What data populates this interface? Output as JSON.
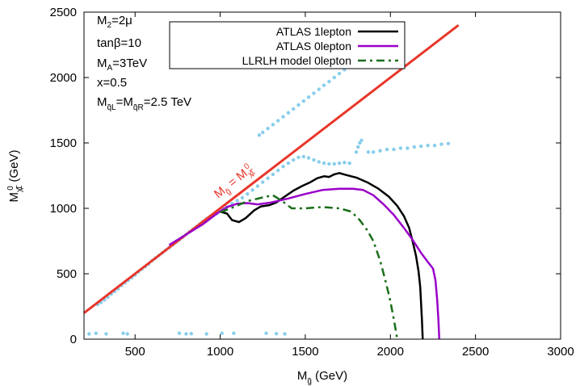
{
  "chart_data": {
    "type": "line",
    "title": "",
    "xlabel": {
      "main": "M",
      "sub": "g̃",
      "unit": " (GeV)"
    },
    "ylabel": {
      "main": "M",
      "sub": "χ̃",
      "sup": "0",
      "sub2": "1",
      "unit": " (GeV)"
    },
    "xlim": [
      200,
      3000
    ],
    "ylim": [
      0,
      2500
    ],
    "xticks": [
      500,
      1000,
      1500,
      2000,
      2500,
      3000
    ],
    "yticks": [
      0,
      500,
      1000,
      1500,
      2000,
      2500
    ],
    "grid": false,
    "legend_position": "top-center",
    "parameters": [
      {
        "main": "M",
        "sub": "2",
        "rest": "=2μ"
      },
      {
        "main": "tanβ=10",
        "sub": "",
        "rest": ""
      },
      {
        "main": "M",
        "sub": "A",
        "rest": "=3TeV"
      },
      {
        "main": "x=0.5",
        "sub": "",
        "rest": ""
      },
      {
        "main": "M",
        "sub": "q̃L",
        "mid": "=M",
        "sub2": "q̃R",
        "rest": "=2.5 TeV"
      }
    ],
    "diagonal": {
      "label_main": "M",
      "label_sub": "g̃",
      "label_mid": " = M",
      "label_sub2": "χ̃",
      "label_sup2": "0",
      "label_sub3": "1",
      "color": "#e8362a",
      "points": [
        [
          200,
          200
        ],
        [
          2400,
          2400
        ]
      ]
    },
    "series": [
      {
        "name": "ATLAS 1lepton",
        "color": "#000000",
        "style": "solid",
        "points": [
          [
            1000,
            975
          ],
          [
            1040,
            960
          ],
          [
            1070,
            910
          ],
          [
            1110,
            895
          ],
          [
            1150,
            925
          ],
          [
            1200,
            985
          ],
          [
            1240,
            1015
          ],
          [
            1290,
            1025
          ],
          [
            1330,
            1045
          ],
          [
            1380,
            1090
          ],
          [
            1430,
            1135
          ],
          [
            1480,
            1170
          ],
          [
            1530,
            1200
          ],
          [
            1570,
            1230
          ],
          [
            1610,
            1245
          ],
          [
            1640,
            1240
          ],
          [
            1670,
            1260
          ],
          [
            1700,
            1270
          ],
          [
            1740,
            1255
          ],
          [
            1800,
            1235
          ],
          [
            1870,
            1195
          ],
          [
            1930,
            1150
          ],
          [
            1990,
            1090
          ],
          [
            2040,
            1020
          ],
          [
            2080,
            940
          ],
          [
            2110,
            850
          ],
          [
            2130,
            750
          ],
          [
            2150,
            640
          ],
          [
            2165,
            520
          ],
          [
            2175,
            400
          ],
          [
            2180,
            280
          ],
          [
            2185,
            150
          ],
          [
            2190,
            0
          ]
        ]
      },
      {
        "name": "ATLAS 0lepton",
        "color": "#9a00c8",
        "style": "solid",
        "points": [
          [
            700,
            720
          ],
          [
            800,
            800
          ],
          [
            900,
            880
          ],
          [
            980,
            960
          ],
          [
            1040,
            1010
          ],
          [
            1100,
            1035
          ],
          [
            1160,
            1040
          ],
          [
            1220,
            1030
          ],
          [
            1300,
            1045
          ],
          [
            1400,
            1075
          ],
          [
            1500,
            1110
          ],
          [
            1600,
            1140
          ],
          [
            1700,
            1150
          ],
          [
            1780,
            1150
          ],
          [
            1840,
            1140
          ],
          [
            1900,
            1100
          ],
          [
            1960,
            1030
          ],
          [
            2020,
            950
          ],
          [
            2080,
            850
          ],
          [
            2130,
            760
          ],
          [
            2180,
            660
          ],
          [
            2220,
            590
          ],
          [
            2250,
            540
          ],
          [
            2265,
            450
          ],
          [
            2275,
            300
          ],
          [
            2282,
            150
          ],
          [
            2287,
            0
          ]
        ]
      },
      {
        "name": "LLRLH model 0lepton",
        "color": "#1a6e1a",
        "style": "dashdot",
        "points": [
          [
            1000,
            970
          ],
          [
            1080,
            1010
          ],
          [
            1160,
            1055
          ],
          [
            1240,
            1080
          ],
          [
            1310,
            1100
          ],
          [
            1360,
            1060
          ],
          [
            1420,
            1000
          ],
          [
            1500,
            1000
          ],
          [
            1600,
            1010
          ],
          [
            1700,
            1000
          ],
          [
            1770,
            975
          ],
          [
            1820,
            910
          ],
          [
            1860,
            840
          ],
          [
            1900,
            750
          ],
          [
            1940,
            600
          ],
          [
            1970,
            450
          ],
          [
            1995,
            320
          ],
          [
            2015,
            190
          ],
          [
            2030,
            80
          ],
          [
            2040,
            0
          ]
        ]
      }
    ],
    "scatter": {
      "name": "",
      "color": "#87ceeb",
      "points": [
        [
          230,
          40
        ],
        [
          270,
          45
        ],
        [
          330,
          40
        ],
        [
          430,
          45
        ],
        [
          455,
          40
        ],
        [
          760,
          45
        ],
        [
          800,
          40
        ],
        [
          830,
          42
        ],
        [
          920,
          40
        ],
        [
          1010,
          45
        ],
        [
          1080,
          45
        ],
        [
          1270,
          45
        ],
        [
          1330,
          42
        ],
        [
          1380,
          40
        ],
        [
          280,
          265
        ],
        [
          300,
          280
        ],
        [
          320,
          300
        ],
        [
          340,
          320
        ],
        [
          360,
          345
        ],
        [
          380,
          365
        ],
        [
          400,
          385
        ],
        [
          420,
          410
        ],
        [
          440,
          430
        ],
        [
          460,
          450
        ],
        [
          480,
          470
        ],
        [
          500,
          490
        ],
        [
          520,
          515
        ],
        [
          540,
          535
        ],
        [
          560,
          555
        ],
        [
          580,
          575
        ],
        [
          600,
          600
        ],
        [
          620,
          620
        ],
        [
          640,
          640
        ],
        [
          660,
          660
        ],
        [
          680,
          680
        ],
        [
          700,
          700
        ],
        [
          720,
          720
        ],
        [
          740,
          740
        ],
        [
          760,
          760
        ],
        [
          780,
          780
        ],
        [
          800,
          800
        ],
        [
          820,
          820
        ],
        [
          840,
          840
        ],
        [
          860,
          860
        ],
        [
          880,
          880
        ],
        [
          900,
          900
        ],
        [
          920,
          920
        ],
        [
          940,
          935
        ],
        [
          960,
          945
        ],
        [
          980,
          960
        ],
        [
          1000,
          980
        ],
        [
          1020,
          995
        ],
        [
          1040,
          1010
        ],
        [
          1070,
          1035
        ],
        [
          1100,
          1060
        ],
        [
          1130,
          1080
        ],
        [
          1160,
          1110
        ],
        [
          1190,
          1140
        ],
        [
          1220,
          1170
        ],
        [
          1250,
          1200
        ],
        [
          1280,
          1230
        ],
        [
          1310,
          1260
        ],
        [
          1340,
          1290
        ],
        [
          1370,
          1320
        ],
        [
          1400,
          1345
        ],
        [
          1430,
          1370
        ],
        [
          1460,
          1390
        ],
        [
          1490,
          1395
        ],
        [
          1520,
          1385
        ],
        [
          1550,
          1370
        ],
        [
          1580,
          1355
        ],
        [
          1610,
          1345
        ],
        [
          1640,
          1340
        ],
        [
          1670,
          1340
        ],
        [
          1700,
          1345
        ],
        [
          1730,
          1350
        ],
        [
          1760,
          1345
        ],
        [
          1230,
          1560
        ],
        [
          1250,
          1580
        ],
        [
          1280,
          1610
        ],
        [
          1310,
          1640
        ],
        [
          1340,
          1670
        ],
        [
          1370,
          1700
        ],
        [
          1400,
          1730
        ],
        [
          1430,
          1760
        ],
        [
          1460,
          1790
        ],
        [
          1490,
          1820
        ],
        [
          1520,
          1850
        ],
        [
          1550,
          1880
        ],
        [
          1580,
          1910
        ],
        [
          1610,
          1940
        ],
        [
          1640,
          1970
        ],
        [
          1670,
          2000
        ],
        [
          1700,
          2030
        ],
        [
          1730,
          2060
        ],
        [
          1760,
          2090
        ],
        [
          1790,
          2120
        ],
        [
          1820,
          2150
        ],
        [
          1850,
          2180
        ],
        [
          1880,
          2210
        ],
        [
          1910,
          2235
        ],
        [
          1800,
          1430
        ],
        [
          1810,
          1470
        ],
        [
          1820,
          1500
        ],
        [
          1830,
          1520
        ],
        [
          1870,
          1430
        ],
        [
          1900,
          1430
        ],
        [
          1940,
          1440
        ],
        [
          1980,
          1450
        ],
        [
          2020,
          1450
        ],
        [
          2060,
          1460
        ],
        [
          2100,
          1460
        ],
        [
          2140,
          1470
        ],
        [
          2180,
          1475
        ],
        [
          2220,
          1480
        ],
        [
          2260,
          1480
        ],
        [
          2300,
          1490
        ],
        [
          2340,
          1495
        ]
      ]
    }
  }
}
